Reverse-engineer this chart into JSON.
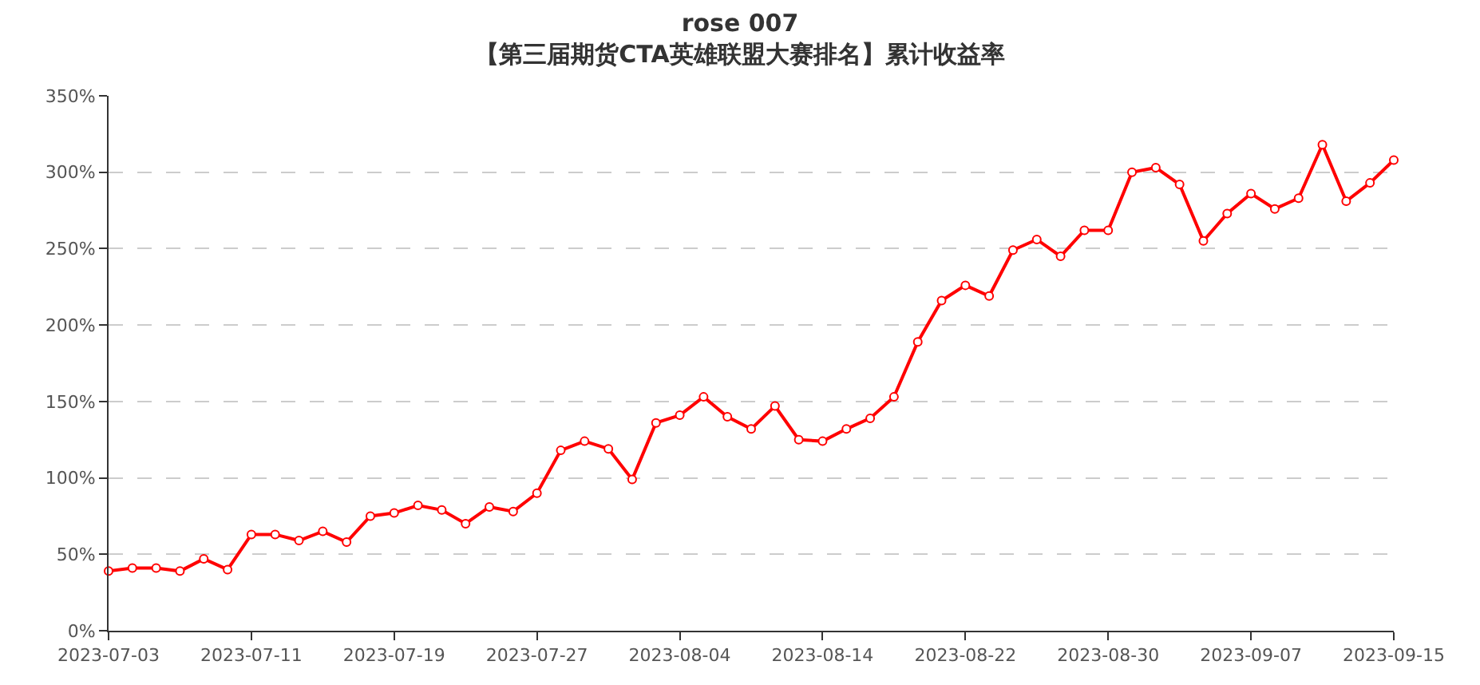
{
  "chart_data": {
    "type": "line",
    "title": "rose 007",
    "subtitle": "【第三届期货CTA英雄联盟大赛排名】累计收益率",
    "categories": [
      "2023-07-03",
      null,
      null,
      null,
      null,
      null,
      "2023-07-11",
      null,
      null,
      null,
      null,
      null,
      "2023-07-19",
      null,
      null,
      null,
      null,
      null,
      "2023-07-27",
      null,
      null,
      null,
      null,
      null,
      "2023-08-04",
      null,
      null,
      null,
      null,
      null,
      "2023-08-14",
      null,
      null,
      null,
      null,
      null,
      "2023-08-22",
      null,
      null,
      null,
      null,
      null,
      "2023-08-30",
      null,
      null,
      null,
      null,
      null,
      "2023-09-07",
      null,
      null,
      null,
      null,
      null,
      "2023-09-15"
    ],
    "series": [
      {
        "color": "#ff0000",
        "values": [
          39,
          41,
          41,
          39,
          47,
          40,
          63,
          63,
          59,
          65,
          58,
          75,
          77,
          82,
          79,
          70,
          81,
          78,
          90,
          118,
          124,
          119,
          99,
          136,
          141,
          153,
          140,
          132,
          147,
          125,
          124,
          132,
          139,
          153,
          189,
          216,
          226,
          219,
          249,
          256,
          245,
          262,
          262,
          300,
          303,
          292,
          255,
          273,
          286,
          276,
          283,
          318,
          281,
          293,
          308
        ]
      }
    ],
    "ylim": [
      0,
      350
    ],
    "yticks": [
      {
        "value": 0,
        "label": "0%"
      },
      {
        "value": 50,
        "label": "50%"
      },
      {
        "value": 100,
        "label": "100%"
      },
      {
        "value": 150,
        "label": "150%"
      },
      {
        "value": 200,
        "label": "200%"
      },
      {
        "value": 250,
        "label": "250%"
      },
      {
        "value": 300,
        "label": "300%"
      },
      {
        "value": 350,
        "label": "350%"
      }
    ],
    "grid": "y",
    "marker": "circle",
    "line_style": "solid"
  }
}
